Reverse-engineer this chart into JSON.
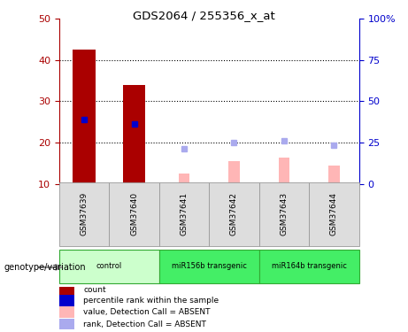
{
  "title": "GDS2064 / 255356_x_at",
  "samples": [
    "GSM37639",
    "GSM37640",
    "GSM37641",
    "GSM37642",
    "GSM37643",
    "GSM37644"
  ],
  "count_values": [
    42.5,
    34.0,
    null,
    null,
    null,
    null
  ],
  "percentile_rank": [
    25.5,
    24.5,
    null,
    null,
    null,
    null
  ],
  "absent_value": [
    null,
    null,
    12.5,
    15.5,
    16.5,
    14.5
  ],
  "absent_rank": [
    null,
    null,
    18.5,
    20.0,
    20.5,
    19.5
  ],
  "left_ylim": [
    10,
    50
  ],
  "left_yticks": [
    10,
    20,
    30,
    40,
    50
  ],
  "right_ylim": [
    0,
    100
  ],
  "right_yticks": [
    0,
    25,
    50,
    75,
    100
  ],
  "right_yticklabels": [
    "0",
    "25",
    "50",
    "75",
    "100%"
  ],
  "bar_bottom": 10,
  "count_color": "#AA0000",
  "rank_color": "#0000CC",
  "absent_val_color": "#FFB6B6",
  "absent_rank_color": "#AAAAEE",
  "grid_lines": [
    20,
    30,
    40
  ],
  "group_configs": [
    {
      "label": "control",
      "start": 0,
      "end": 1,
      "color": "#CCFFCC"
    },
    {
      "label": "miR156b transgenic",
      "start": 2,
      "end": 3,
      "color": "#44EE66"
    },
    {
      "label": "miR164b transgenic",
      "start": 4,
      "end": 5,
      "color": "#44EE66"
    }
  ],
  "legend_items": [
    {
      "color": "#AA0000",
      "label": "count"
    },
    {
      "color": "#0000CC",
      "label": "percentile rank within the sample"
    },
    {
      "color": "#FFB6B6",
      "label": "value, Detection Call = ABSENT"
    },
    {
      "color": "#AAAAEE",
      "label": "rank, Detection Call = ABSENT"
    }
  ],
  "genotype_label": "genotype/variation"
}
